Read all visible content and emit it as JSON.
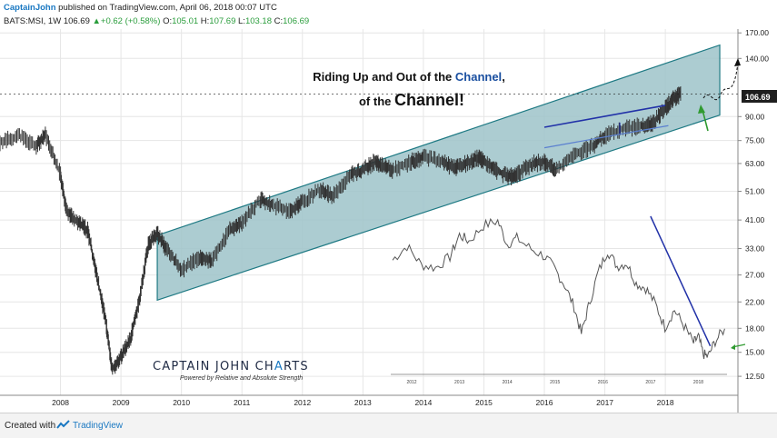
{
  "header": {
    "author": "CaptainJohn",
    "published": " published on TradingView.com, April 06, 2018 00:07 UTC",
    "symbol": "BATS:MSI, 1W",
    "price": "106.69",
    "change_arrow": "▲",
    "change": "+0.62 (+0.58%)",
    "o_label": "O:",
    "o_val": "105.01",
    "h_label": "H:",
    "h_val": "107.69",
    "l_label": "L:",
    "l_val": "103.18",
    "c_label": "C:",
    "c_val": "106.69"
  },
  "annotation": {
    "line1_a": "Riding Up and Out of the ",
    "line1_b": "Channel",
    "line1_c": ",",
    "line2_a": "of the ",
    "line2_b": "Channel!"
  },
  "logo": {
    "title_a": "CAPTAIN JOHN CH",
    "title_b": "A",
    "title_c": "RTS",
    "tagline": "Powered by Relative and Absolute Strength"
  },
  "footer": {
    "created_with": "Created with",
    "brand": "TradingView"
  },
  "colors": {
    "channel_fill": "#9dc3c9",
    "channel_edge": "#1f7a84",
    "price_line": "#333333",
    "inset_line": "#555555",
    "blue_line": "#2232a8",
    "green_arrow": "#2f9a30",
    "brand_blue": "#1a78c2",
    "grid": "#e6e6e6"
  },
  "chart_data": [
    {
      "type": "line",
      "title": "BATS:MSI, 1W",
      "scale": "log",
      "ylim": [
        11.2,
        175
      ],
      "xlim": [
        2007.0,
        2019.2
      ],
      "y_ticks": [
        12.5,
        15.0,
        18.0,
        22.0,
        27.0,
        33.0,
        41.0,
        51.0,
        63.0,
        75.0,
        90.0,
        140.0,
        170.0
      ],
      "x_ticks": [
        2008,
        2009,
        2010,
        2011,
        2012,
        2013,
        2014,
        2015,
        2016,
        2017,
        2018
      ],
      "last_price": 106.69,
      "grid": true,
      "series": [
        {
          "x": [
            2007.0,
            2007.3,
            2007.6,
            2007.75,
            2008.0,
            2008.1,
            2008.3,
            2008.45,
            2008.6,
            2008.75,
            2008.85,
            2009.0,
            2009.15,
            2009.3,
            2009.45,
            2009.6,
            2009.75,
            2010.0,
            2010.3,
            2010.5,
            2010.8,
            2011.0,
            2011.3,
            2011.5,
            2011.8,
            2012.0,
            2012.3,
            2012.5,
            2012.8,
            2013.0,
            2013.2,
            2013.3,
            2013.5,
            2013.8,
            2014.0,
            2014.3,
            2014.5,
            2014.7,
            2014.9,
            2015.0,
            2015.2,
            2015.4,
            2015.55,
            2015.8,
            2016.0,
            2016.2,
            2016.5,
            2016.8,
            2017.0,
            2017.3,
            2017.6,
            2017.8,
            2018.0,
            2018.15,
            2018.26
          ],
          "values": [
            74,
            78,
            72,
            78,
            58,
            44,
            40,
            38,
            27,
            19,
            13.2,
            14.5,
            16.5,
            22,
            34,
            37,
            33,
            28,
            31,
            30,
            38,
            40,
            48,
            46,
            44,
            47,
            52,
            49,
            58,
            60,
            64,
            62,
            60,
            64,
            66,
            64,
            61,
            63,
            66,
            64,
            60,
            57,
            58,
            63,
            64,
            60,
            67,
            72,
            78,
            82,
            84,
            86,
            96,
            104,
            106.69
          ]
        }
      ],
      "channel": {
        "upper": [
          [
            2009.6,
            36.5
          ],
          [
            2018.9,
            155
          ]
        ],
        "lower": [
          [
            2009.6,
            22.3
          ],
          [
            2018.9,
            91
          ]
        ]
      },
      "inner_channel": {
        "upper": [
          [
            2016.0,
            83
          ],
          [
            2018.0,
            98
          ]
        ],
        "lower": [
          [
            2016.0,
            71
          ],
          [
            2018.05,
            84
          ]
        ]
      }
    },
    {
      "type": "line",
      "title": "",
      "x_ticks": [
        2012,
        2013,
        2014,
        2015,
        2016,
        2017,
        2018
      ],
      "xlim": [
        2011.6,
        2018.6
      ],
      "ylim": [
        0,
        100
      ],
      "series": [
        {
          "x": [
            2011.6,
            2011.9,
            2012.2,
            2012.5,
            2012.8,
            2013.0,
            2013.2,
            2013.5,
            2013.8,
            2014.0,
            2014.2,
            2014.5,
            2014.8,
            2015.0,
            2015.2,
            2015.4,
            2015.55,
            2015.7,
            2015.9,
            2016.1,
            2016.3,
            2016.5,
            2016.7,
            2016.9,
            2017.1,
            2017.3,
            2017.5,
            2017.7,
            2017.9,
            2018.0,
            2018.1,
            2018.2,
            2018.35,
            2018.55
          ],
          "values": [
            72,
            81,
            69,
            67,
            74,
            88,
            84,
            94,
            97,
            82,
            86,
            79,
            74,
            66,
            56,
            42,
            25,
            42,
            64,
            78,
            68,
            70,
            57,
            54,
            44,
            29,
            40,
            30,
            19,
            23,
            12,
            10,
            20,
            28
          ]
        }
      ]
    }
  ]
}
